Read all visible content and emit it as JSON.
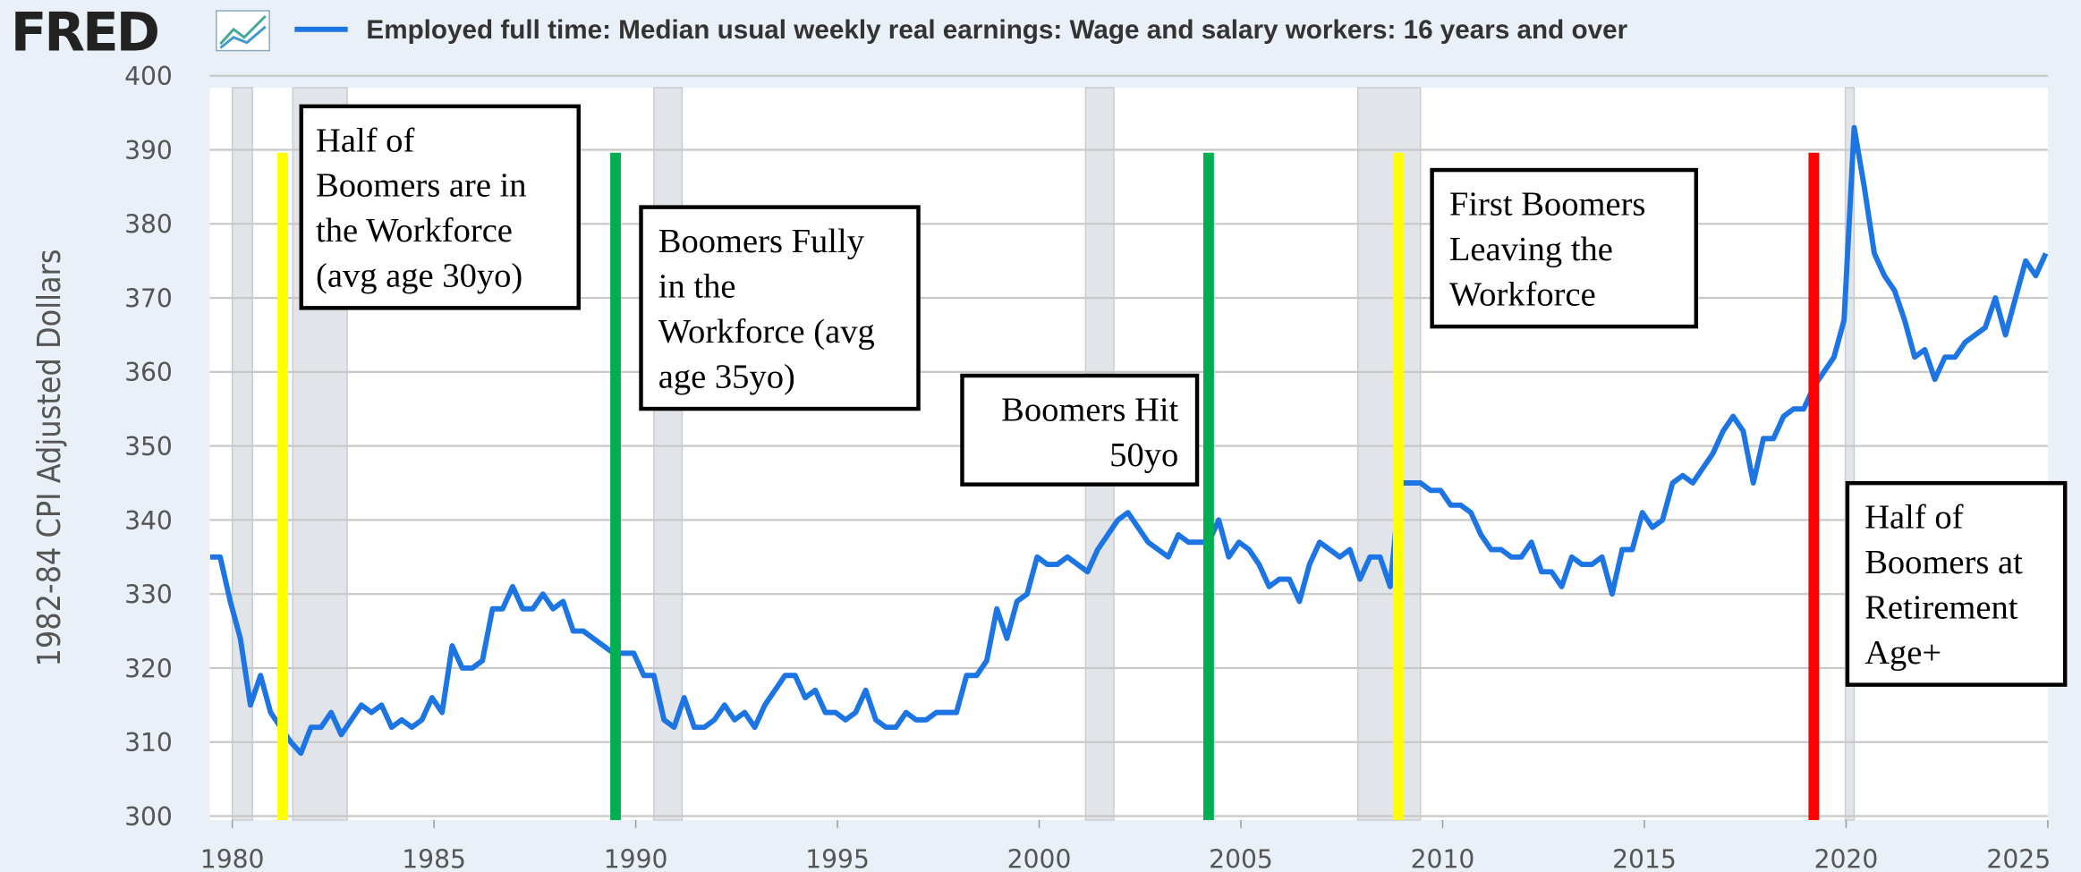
{
  "chart_data": {
    "type": "line",
    "logo": "FRED",
    "ylabel": "1982-84 CPI Adjusted Dollars",
    "xlim": [
      1979.44,
      2025.0
    ],
    "xticks": [
      1980,
      1985,
      1990,
      1995,
      2000,
      2005,
      2010,
      2015,
      2020,
      2025
    ],
    "ylim": [
      300,
      400
    ],
    "yticks": [
      300,
      310,
      320,
      330,
      340,
      350,
      360,
      370,
      380,
      390,
      400
    ],
    "grid": true,
    "recessions": [
      [
        1980.0,
        1980.5
      ],
      [
        1981.5,
        1982.85
      ],
      [
        1990.45,
        1991.15
      ],
      [
        2001.15,
        2001.85
      ],
      [
        2007.9,
        2009.45
      ],
      [
        2019.98,
        2020.2
      ]
    ],
    "series": [
      {
        "name": "Employed full time: Median usual weekly real earnings: Wage and salary workers: 16 years and over",
        "color": "#1c75e3",
        "x": [
          1979.45,
          1979.7,
          1979.95,
          1980.2,
          1980.45,
          1980.7,
          1980.95,
          1981.2,
          1981.45,
          1981.7,
          1981.95,
          1982.2,
          1982.45,
          1982.7,
          1982.95,
          1983.2,
          1983.45,
          1983.7,
          1983.95,
          1984.2,
          1984.45,
          1984.7,
          1984.95,
          1985.2,
          1985.45,
          1985.7,
          1985.95,
          1986.2,
          1986.45,
          1986.7,
          1986.95,
          1987.2,
          1987.45,
          1987.7,
          1987.95,
          1988.2,
          1988.45,
          1988.7,
          1988.95,
          1989.2,
          1989.45,
          1989.7,
          1989.95,
          1990.2,
          1990.45,
          1990.7,
          1990.95,
          1991.2,
          1991.45,
          1991.7,
          1991.95,
          1992.2,
          1992.45,
          1992.7,
          1992.95,
          1993.2,
          1993.45,
          1993.7,
          1993.95,
          1994.2,
          1994.45,
          1994.7,
          1994.95,
          1995.2,
          1995.45,
          1995.7,
          1995.95,
          1996.2,
          1996.45,
          1996.7,
          1996.95,
          1997.2,
          1997.45,
          1997.7,
          1997.95,
          1998.2,
          1998.45,
          1998.7,
          1998.95,
          1999.2,
          1999.45,
          1999.7,
          1999.95,
          2000.2,
          2000.45,
          2000.7,
          2000.95,
          2001.2,
          2001.45,
          2001.7,
          2001.95,
          2002.2,
          2002.45,
          2002.7,
          2002.95,
          2003.2,
          2003.45,
          2003.7,
          2003.95,
          2004.2,
          2004.45,
          2004.7,
          2004.95,
          2005.2,
          2005.45,
          2005.7,
          2005.95,
          2006.2,
          2006.45,
          2006.7,
          2006.95,
          2007.2,
          2007.45,
          2007.7,
          2007.95,
          2008.2,
          2008.45,
          2008.7,
          2008.95,
          2009.2,
          2009.45,
          2009.7,
          2009.95,
          2010.2,
          2010.45,
          2010.7,
          2010.95,
          2011.2,
          2011.45,
          2011.7,
          2011.95,
          2012.2,
          2012.45,
          2012.7,
          2012.95,
          2013.2,
          2013.45,
          2013.7,
          2013.95,
          2014.2,
          2014.45,
          2014.7,
          2014.95,
          2015.2,
          2015.45,
          2015.7,
          2015.95,
          2016.2,
          2016.45,
          2016.7,
          2016.95,
          2017.2,
          2017.45,
          2017.7,
          2017.95,
          2018.2,
          2018.45,
          2018.7,
          2018.95,
          2019.2,
          2019.45,
          2019.7,
          2019.95,
          2020.2,
          2020.45,
          2020.7,
          2020.95,
          2021.2,
          2021.45,
          2021.7,
          2021.95,
          2022.2,
          2022.45,
          2022.7,
          2022.95,
          2023.2,
          2023.45,
          2023.7,
          2023.95,
          2024.2,
          2024.45,
          2024.7,
          2024.95
        ],
        "values": [
          335,
          335,
          329,
          324,
          315,
          319,
          314,
          312,
          310,
          308.5,
          312,
          312,
          314,
          311,
          313,
          315,
          314,
          315,
          312,
          313,
          312,
          313,
          316,
          314,
          323,
          320,
          320,
          321,
          328,
          328,
          331,
          328,
          328,
          330,
          328,
          329,
          325,
          325,
          324,
          323,
          322,
          322,
          322,
          319,
          319,
          313,
          312,
          316,
          312,
          312,
          313,
          315,
          313,
          314,
          312,
          315,
          317,
          319,
          319,
          316,
          317,
          314,
          314,
          313,
          314,
          317,
          313,
          312,
          312,
          314,
          313,
          313,
          314,
          314,
          314,
          319,
          319,
          321,
          328,
          324,
          329,
          330,
          335,
          334,
          334,
          335,
          334,
          333,
          336,
          338,
          340,
          341,
          339,
          337,
          336,
          335,
          338,
          337,
          337,
          337,
          340,
          335,
          337,
          336,
          334,
          331,
          332,
          332,
          329,
          334,
          337,
          336,
          335,
          336,
          332,
          335,
          335,
          331,
          345,
          345,
          345,
          344,
          344,
          342,
          342,
          341,
          338,
          336,
          336,
          335,
          335,
          337,
          333,
          333,
          331,
          335,
          334,
          334,
          335,
          330,
          336,
          336,
          341,
          339,
          340,
          345,
          346,
          345,
          347,
          349,
          352,
          354,
          352,
          345,
          351,
          351,
          354,
          355,
          355,
          358,
          360,
          362,
          367,
          393,
          385,
          376,
          373,
          371,
          367,
          362,
          363,
          359,
          362,
          362,
          364,
          365,
          366,
          370,
          365,
          370,
          375,
          373,
          376
        ]
      }
    ],
    "vlines": [
      {
        "x": 1981.25,
        "color": "#ffff00"
      },
      {
        "x": 1989.5,
        "color": "#00b050"
      },
      {
        "x": 2004.2,
        "color": "#00b050"
      },
      {
        "x": 2008.9,
        "color": "#ffff00"
      },
      {
        "x": 2019.2,
        "color": "#ff0000"
      }
    ],
    "annotations": [
      {
        "lines": [
          "Half of",
          "Boomers are in",
          "the Workforce",
          "(avg age 30yo)"
        ]
      },
      {
        "lines": [
          "Boomers Fully",
          "in the",
          "Workforce (avg",
          "age 35yo)"
        ]
      },
      {
        "lines": [
          "Boomers Hit",
          "50yo"
        ]
      },
      {
        "lines": [
          "First Boomers",
          "Leaving the",
          "Workforce"
        ]
      },
      {
        "lines": [
          "Half of",
          "Boomers at",
          "Retirement",
          "Age+"
        ]
      }
    ]
  }
}
